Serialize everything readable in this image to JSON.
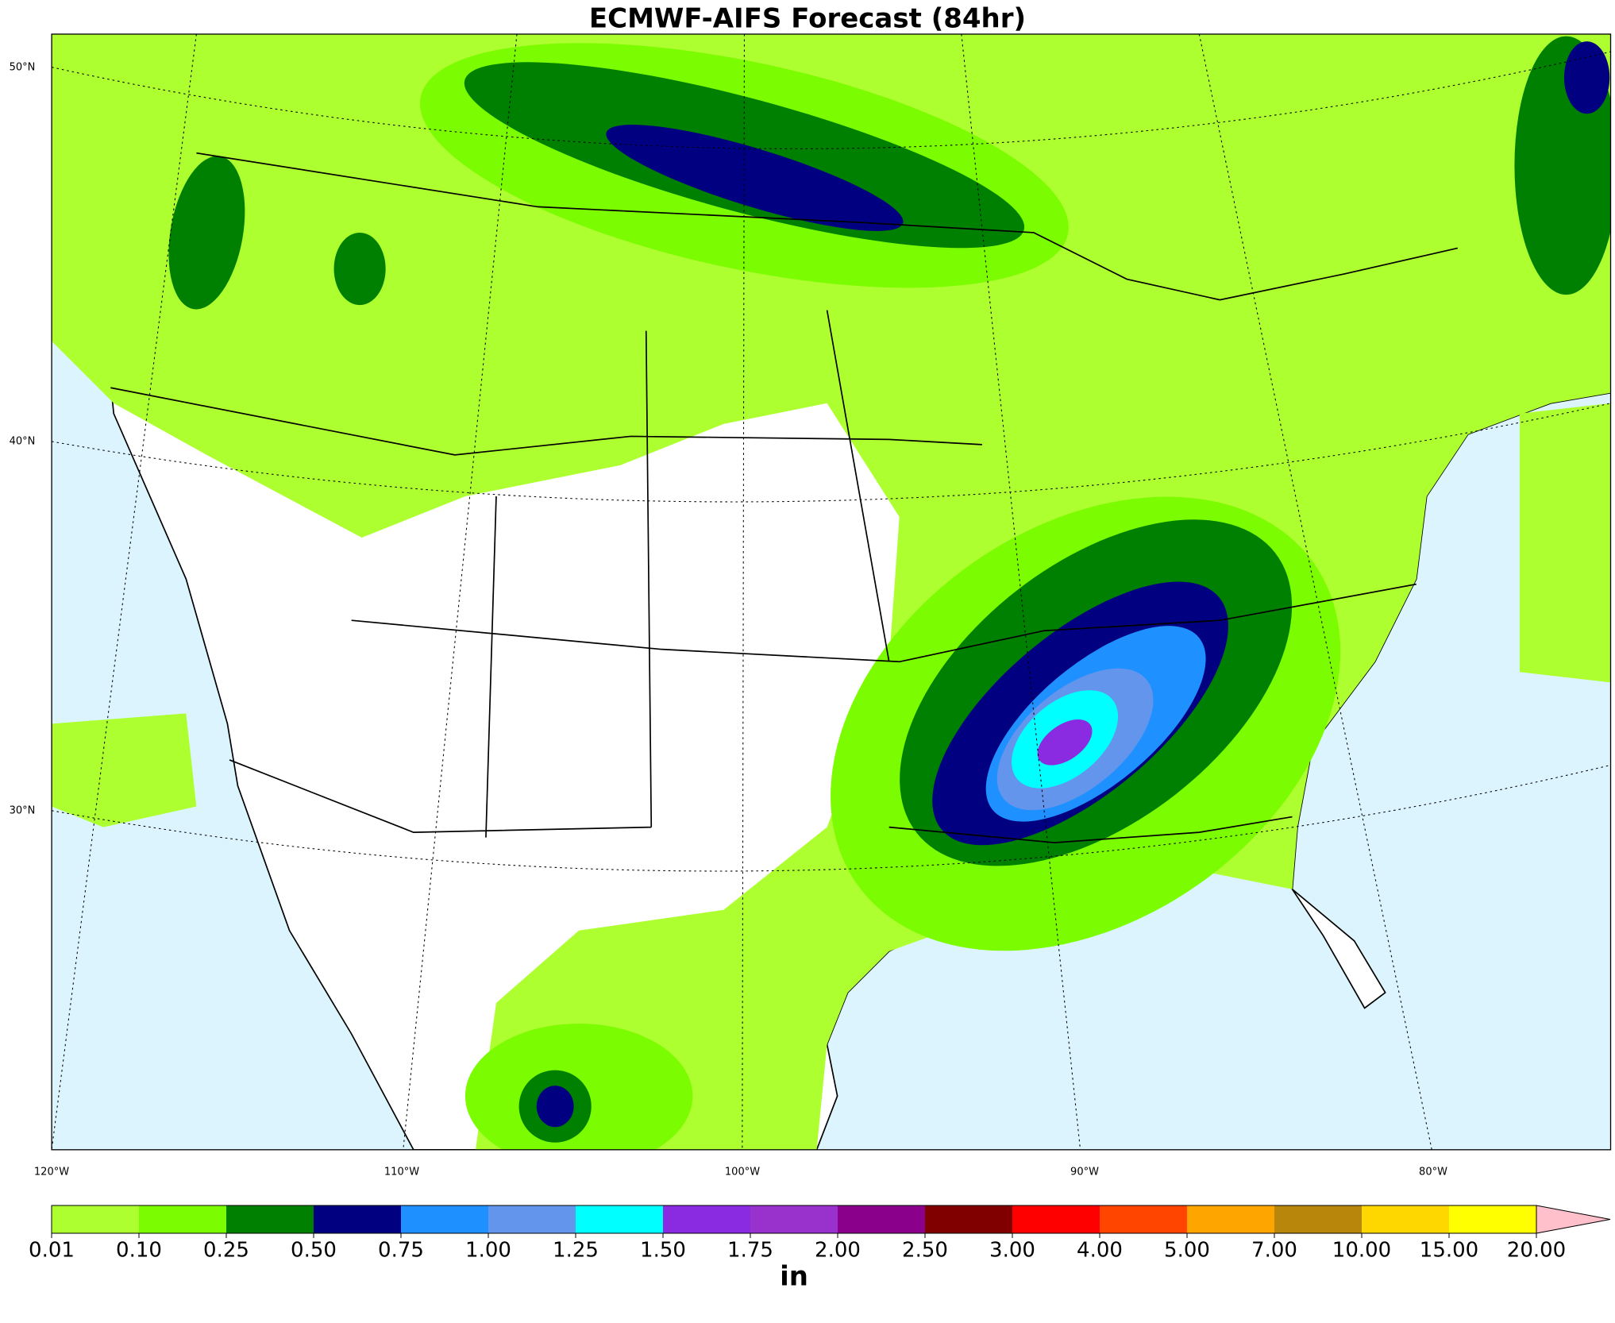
{
  "title": "ECMWF-AIFS Forecast (84hr)",
  "lat_labels": [
    "50°N",
    "40°N",
    "30°N"
  ],
  "lon_labels": [
    "120°W",
    "110°W",
    "100°W",
    "90°W",
    "80°W"
  ],
  "colorbar": {
    "levels": [
      {
        "value": 0.01,
        "label": "0.01"
      },
      {
        "value": 0.1,
        "label": "0.10"
      },
      {
        "value": 0.25,
        "label": "0.25"
      },
      {
        "value": 0.5,
        "label": "0.50"
      },
      {
        "value": 0.75,
        "label": "0.75"
      },
      {
        "value": 1,
        "label": "1.00"
      },
      {
        "value": 1.25,
        "label": "1.25"
      },
      {
        "value": 1.5,
        "label": "1.50"
      },
      {
        "value": 1.75,
        "label": "1.75"
      },
      {
        "value": 2,
        "label": "2.00"
      },
      {
        "value": 2.5,
        "label": "2.50"
      },
      {
        "value": 3,
        "label": "3.00"
      },
      {
        "value": 4,
        "label": "4.00"
      },
      {
        "value": 5,
        "label": "5.00"
      },
      {
        "value": 7,
        "label": "7.00"
      },
      {
        "value": 10,
        "label": "10.00"
      },
      {
        "value": 15,
        "label": "15.00"
      },
      {
        "value": 20,
        "label": "20.00"
      }
    ],
    "colors": [
      "#adff2f",
      "#7cfc00",
      "#008000",
      "#000080",
      "#1e90ff",
      "#6495ed",
      "#00ffff",
      "#8a2be2",
      "#9932cc",
      "#8b008b",
      "#800000",
      "#ff0000",
      "#ff4500",
      "#ffa500",
      "#b8860b",
      "#ffd700",
      "#ffff00"
    ],
    "extend_color": "#ffc0cb",
    "unit": "in"
  }
}
